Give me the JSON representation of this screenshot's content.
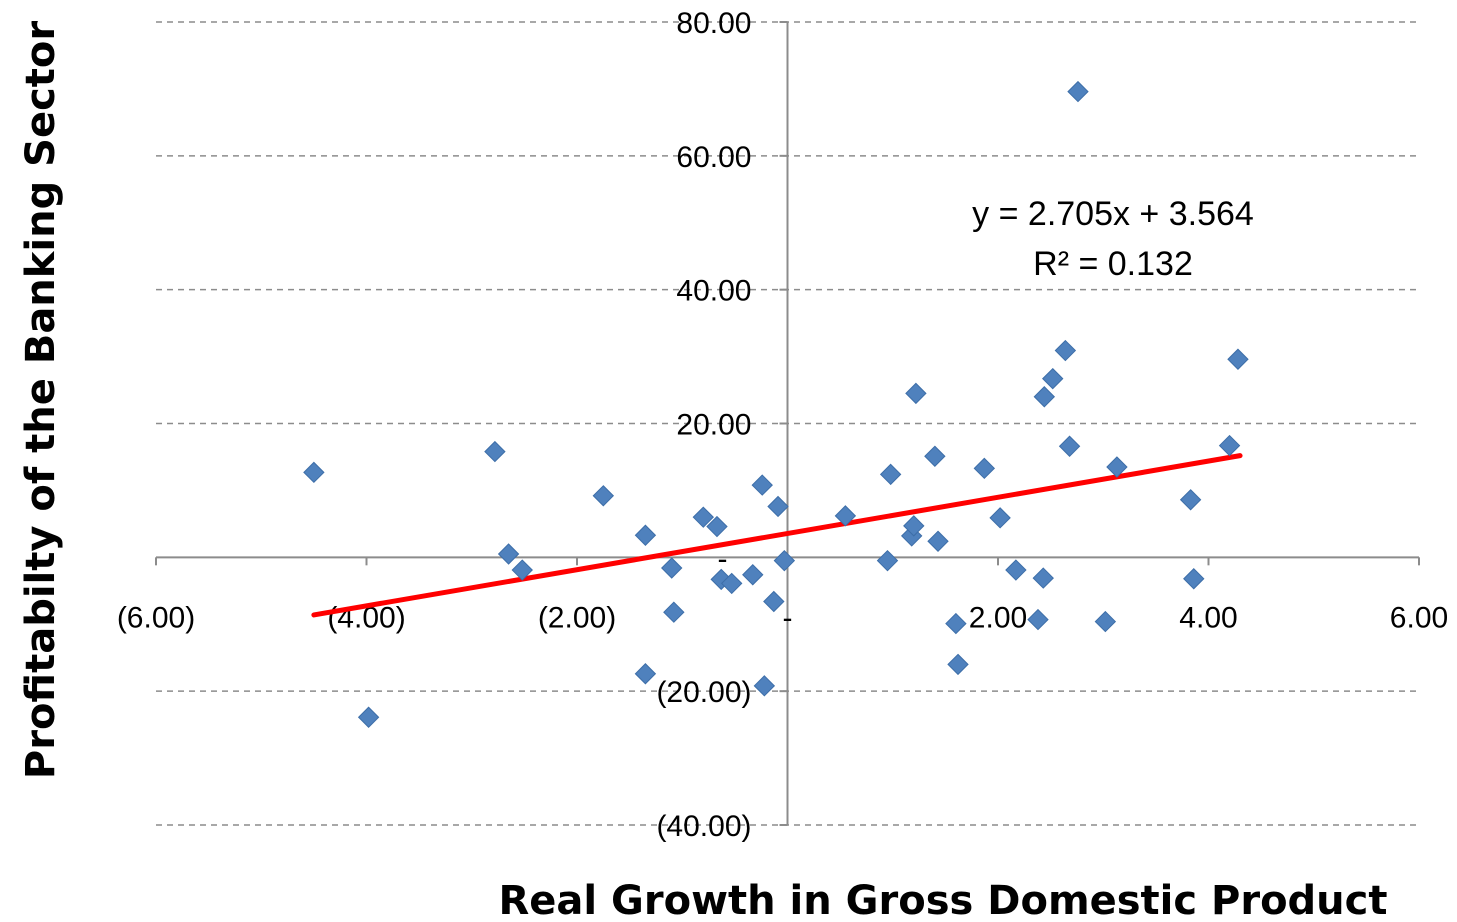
{
  "chart_data": {
    "type": "scatter",
    "xlabel": "Real Growth in Gross Domestic Product",
    "ylabel": "Profitabilty of the Banking Sector",
    "xlim": [
      -6,
      6
    ],
    "ylim": [
      -40,
      80
    ],
    "x_ticks": [
      {
        "value": -6,
        "label": "(6.00)"
      },
      {
        "value": -4,
        "label": "(4.00)"
      },
      {
        "value": -2,
        "label": "(2.00)"
      },
      {
        "value": 0,
        "label": "-"
      },
      {
        "value": 2,
        "label": "2.00"
      },
      {
        "value": 4,
        "label": "4.00"
      },
      {
        "value": 6,
        "label": "6.00"
      }
    ],
    "y_ticks": [
      {
        "value": -40,
        "label": "(40.00)"
      },
      {
        "value": -20,
        "label": "(20.00)"
      },
      {
        "value": 0,
        "label": "-"
      },
      {
        "value": 20,
        "label": "20.00"
      },
      {
        "value": 40,
        "label": "40.00"
      },
      {
        "value": 60,
        "label": "60.00"
      },
      {
        "value": 80,
        "label": "80.00"
      }
    ],
    "grid": "horizontal-dashed",
    "marker_color": "#4F81BD",
    "trendline_color": "#FF0000",
    "trendline": {
      "slope": 2.705,
      "intercept": 3.564,
      "x_range": [
        -4.5,
        4.3
      ],
      "equation_label": "y = 2.705x + 3.564",
      "r2_label": "R² = 0.132"
    },
    "points": [
      {
        "x": -4.5,
        "y": 12.7
      },
      {
        "x": -3.98,
        "y": -23.9
      },
      {
        "x": -2.78,
        "y": 15.8
      },
      {
        "x": -2.65,
        "y": 0.5
      },
      {
        "x": -2.52,
        "y": -1.9
      },
      {
        "x": -1.75,
        "y": 9.2
      },
      {
        "x": -1.35,
        "y": 3.3
      },
      {
        "x": -1.35,
        "y": -17.4
      },
      {
        "x": -1.1,
        "y": -1.6
      },
      {
        "x": -1.08,
        "y": -8.2
      },
      {
        "x": -0.8,
        "y": 6.0
      },
      {
        "x": -0.67,
        "y": 4.6
      },
      {
        "x": -0.63,
        "y": -3.3
      },
      {
        "x": -0.53,
        "y": -3.9
      },
      {
        "x": -0.33,
        "y": -2.6
      },
      {
        "x": -0.24,
        "y": 10.8
      },
      {
        "x": -0.22,
        "y": -19.2
      },
      {
        "x": -0.13,
        "y": -6.6
      },
      {
        "x": -0.09,
        "y": 7.6
      },
      {
        "x": -0.03,
        "y": -0.5
      },
      {
        "x": 0.55,
        "y": 6.2
      },
      {
        "x": 0.95,
        "y": -0.5
      },
      {
        "x": 0.98,
        "y": 12.4
      },
      {
        "x": 1.18,
        "y": 3.2
      },
      {
        "x": 1.2,
        "y": 4.7
      },
      {
        "x": 1.22,
        "y": 24.5
      },
      {
        "x": 1.4,
        "y": 15.1
      },
      {
        "x": 1.43,
        "y": 2.4
      },
      {
        "x": 1.6,
        "y": -9.9
      },
      {
        "x": 1.62,
        "y": -16.0
      },
      {
        "x": 1.87,
        "y": 13.3
      },
      {
        "x": 2.02,
        "y": 5.9
      },
      {
        "x": 2.17,
        "y": -1.9
      },
      {
        "x": 2.38,
        "y": -9.3
      },
      {
        "x": 2.43,
        "y": -3.1
      },
      {
        "x": 2.44,
        "y": 24.0
      },
      {
        "x": 2.52,
        "y": 26.7
      },
      {
        "x": 2.64,
        "y": 30.9
      },
      {
        "x": 2.68,
        "y": 16.6
      },
      {
        "x": 2.76,
        "y": 69.6
      },
      {
        "x": 3.02,
        "y": -9.6
      },
      {
        "x": 3.13,
        "y": 13.5
      },
      {
        "x": 3.83,
        "y": 8.6
      },
      {
        "x": 3.86,
        "y": -3.2
      },
      {
        "x": 4.2,
        "y": 16.7
      },
      {
        "x": 4.28,
        "y": 29.6
      }
    ]
  }
}
